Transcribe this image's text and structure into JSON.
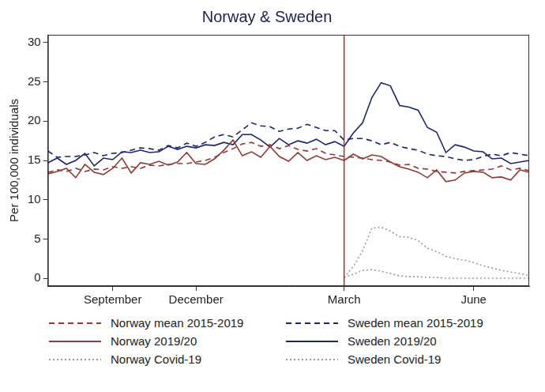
{
  "chart_data": {
    "type": "line",
    "title": "Norway & Sweden",
    "y_label": "Per 100,000 individuals",
    "categories": [
      null,
      null,
      null,
      null,
      null,
      null,
      null,
      "September",
      null,
      null,
      null,
      null,
      null,
      null,
      null,
      null,
      "December",
      null,
      null,
      null,
      null,
      null,
      null,
      null,
      null,
      null,
      null,
      null,
      null,
      null,
      null,
      null,
      "March",
      null,
      null,
      null,
      null,
      null,
      null,
      null,
      null,
      null,
      null,
      null,
      null,
      null,
      "June",
      null,
      null,
      null,
      null,
      null,
      null
    ],
    "ylim": [
      -1,
      31
    ],
    "yticks": [
      0,
      5,
      10,
      15,
      20,
      25,
      30
    ],
    "grid": false,
    "legend": "bottom",
    "vline": {
      "x": "March",
      "color": "#a3322e"
    },
    "series": [
      {
        "name": "Norway mean 2015-2019",
        "color": "#8b3c37",
        "line_style": "dashed",
        "values": [
          13.5,
          13.8,
          13.6,
          14.0,
          13.6,
          13.9,
          13.8,
          14.2,
          14.0,
          14.2,
          14.0,
          14.4,
          14.3,
          14.5,
          14.6,
          14.6,
          14.8,
          15.0,
          15.4,
          16.0,
          16.5,
          17.1,
          17.3,
          16.8,
          17.0,
          16.5,
          16.9,
          16.4,
          16.2,
          16.5,
          15.9,
          15.7,
          15.5,
          15.4,
          15.3,
          15.1,
          15.0,
          14.8,
          14.4,
          14.5,
          14.0,
          13.9,
          13.6,
          13.5,
          13.4,
          13.6,
          13.7,
          13.8,
          13.9,
          14.3,
          13.8,
          14.0,
          13.7
        ]
      },
      {
        "name": "Sweden mean 2015-2019",
        "color": "#1c2566",
        "line_style": "dashed",
        "values": [
          16.2,
          15.4,
          15.5,
          15.5,
          15.7,
          16.0,
          15.6,
          15.9,
          16.0,
          16.3,
          16.6,
          16.5,
          16.3,
          16.9,
          16.6,
          17.2,
          16.8,
          17.3,
          18.0,
          18.3,
          18.0,
          18.9,
          19.8,
          19.4,
          19.3,
          18.7,
          19.0,
          19.1,
          19.6,
          19.2,
          18.8,
          18.8,
          17.6,
          17.8,
          17.8,
          17.5,
          17.0,
          17.3,
          16.8,
          16.5,
          16.3,
          15.8,
          15.6,
          15.5,
          15.2,
          15.0,
          15.1,
          15.5,
          15.8,
          15.6,
          16.0,
          15.8,
          15.6
        ]
      },
      {
        "name": "Norway 2019/20",
        "color": "#8b3c37",
        "line_style": "solid",
        "values": [
          13.3,
          13.6,
          14.0,
          12.8,
          14.5,
          13.5,
          13.2,
          14.0,
          15.3,
          13.4,
          14.7,
          14.5,
          14.9,
          14.4,
          14.8,
          16.0,
          14.6,
          14.5,
          15.2,
          16.3,
          17.6,
          15.6,
          16.1,
          15.4,
          16.8,
          15.5,
          14.9,
          16.0,
          15.0,
          15.6,
          15.1,
          15.4,
          15.0,
          15.8,
          15.2,
          15.7,
          15.5,
          14.8,
          14.2,
          13.9,
          13.5,
          12.8,
          13.8,
          12.3,
          12.5,
          13.4,
          13.6,
          13.5,
          12.8,
          12.9,
          12.5,
          13.8,
          13.5
        ]
      },
      {
        "name": "Sweden 2019/20",
        "color": "#1c2566",
        "line_style": "solid",
        "values": [
          14.7,
          15.3,
          14.5,
          15.0,
          15.9,
          14.3,
          15.3,
          15.1,
          16.1,
          16.0,
          16.3,
          16.0,
          16.1,
          16.8,
          16.4,
          16.8,
          16.6,
          17.0,
          16.9,
          17.3,
          17.0,
          18.3,
          18.3,
          17.6,
          16.7,
          17.8,
          17.0,
          17.5,
          17.2,
          17.7,
          17.0,
          17.4,
          16.8,
          18.5,
          19.8,
          23.0,
          24.9,
          24.5,
          22.0,
          21.8,
          21.4,
          19.2,
          18.6,
          16.0,
          17.0,
          16.7,
          16.2,
          16.1,
          15.2,
          15.3,
          14.6,
          14.8,
          15.0
        ]
      },
      {
        "name": "Norway Covid-19",
        "color": "#9a9a9a",
        "line_style": "dotted",
        "values": [
          null,
          null,
          null,
          null,
          null,
          null,
          null,
          null,
          null,
          null,
          null,
          null,
          null,
          null,
          null,
          null,
          null,
          null,
          null,
          null,
          null,
          null,
          null,
          null,
          null,
          null,
          null,
          null,
          null,
          null,
          null,
          null,
          0.1,
          0.5,
          1.0,
          1.1,
          0.9,
          0.6,
          0.3,
          0.2,
          0.2,
          0.1,
          0.1,
          0,
          0,
          0,
          0,
          0,
          0,
          0,
          0,
          0,
          0
        ]
      },
      {
        "name": "Sweden Covid-19",
        "color": "#9a9a9a",
        "line_style": "dotted",
        "values": [
          null,
          null,
          null,
          null,
          null,
          null,
          null,
          null,
          null,
          null,
          null,
          null,
          null,
          null,
          null,
          null,
          null,
          null,
          null,
          null,
          null,
          null,
          null,
          null,
          null,
          null,
          null,
          null,
          null,
          null,
          null,
          null,
          0.1,
          1.5,
          3.5,
          6.4,
          6.5,
          6.0,
          5.3,
          5.2,
          4.8,
          3.8,
          3.4,
          2.8,
          2.5,
          2.3,
          2.0,
          1.6,
          1.3,
          1.0,
          0.8,
          0.6,
          0.3
        ]
      }
    ]
  }
}
